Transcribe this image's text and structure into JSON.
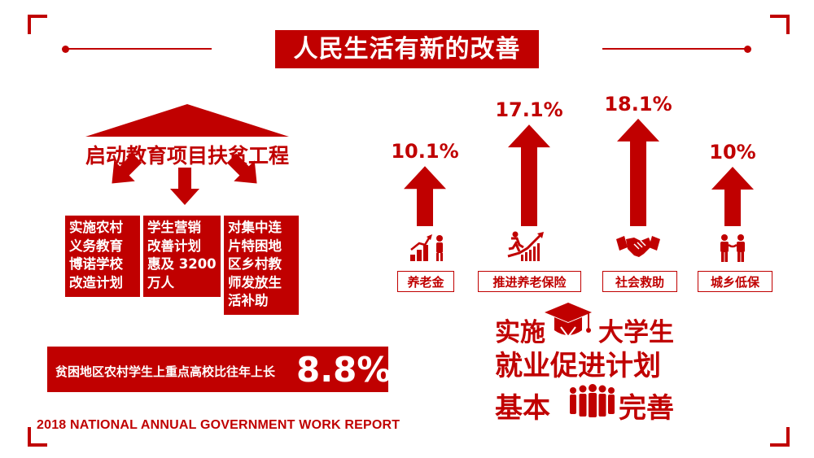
{
  "title": "人民生活有新的改善",
  "education": {
    "title": "启动教育项目扶贫工程",
    "boxes": [
      {
        "lines": [
          "实施农村",
          "义务教育",
          "博诺学校",
          "改造计划"
        ]
      },
      {
        "lines": [
          "学生营销",
          "改善计划",
          "惠及 3200",
          "万人"
        ]
      },
      {
        "lines": [
          "对集中连",
          "片特困地",
          "区乡村教",
          "师发放生",
          "活补助"
        ]
      }
    ]
  },
  "poverty": {
    "label": "贫困地区农村学生上重点高校比往年上长",
    "value": "8.8%"
  },
  "arrows": [
    {
      "label": "养老金",
      "percent": "10.1%",
      "value": 10.1,
      "icon": "growth-person-icon"
    },
    {
      "label": "推进养老保险",
      "percent": "17.1%",
      "value": 17.1,
      "icon": "running-growth-icon"
    },
    {
      "label": "社会救助",
      "percent": "18.1%",
      "value": 18.1,
      "icon": "handshake-icon"
    },
    {
      "label": "城乡低保",
      "percent": "10%",
      "value": 10,
      "icon": "family-icon"
    }
  ],
  "graduate": {
    "part1": "实施",
    "part2": "大学生",
    "line2": "就业促进计划",
    "part3": "基本",
    "part4": "完善",
    "icons": [
      "graduation-cap-icon",
      "people-group-icon"
    ]
  },
  "footer": "2018 NATIONAL ANNUAL GOVERNMENT WORK REPORT",
  "colors": {
    "accent": "#c00000",
    "background": "#ffffff"
  }
}
